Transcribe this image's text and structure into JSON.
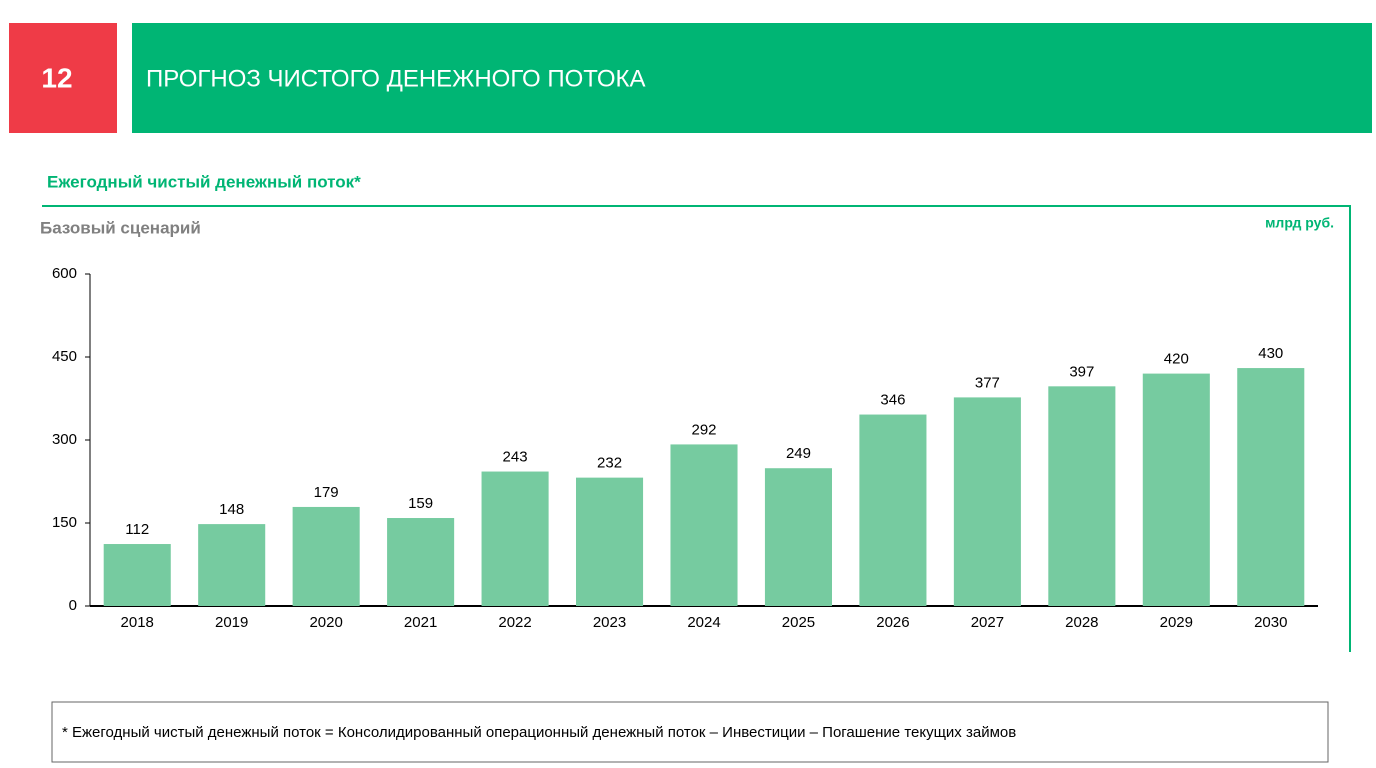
{
  "slide_number": "12",
  "header": {
    "title": "ПРОГНОЗ ЧИСТОГО ДЕНЕЖНОГО ПОТОКА"
  },
  "chart_data": {
    "type": "bar",
    "title": "Ежегодный чистый денежный поток*",
    "subtitle": "Базовый сценарий",
    "unit_label": "млрд руб.",
    "categories": [
      "2018",
      "2019",
      "2020",
      "2021",
      "2022",
      "2023",
      "2024",
      "2025",
      "2026",
      "2027",
      "2028",
      "2029",
      "2030"
    ],
    "values": [
      112,
      148,
      179,
      159,
      243,
      232,
      292,
      249,
      346,
      377,
      397,
      420,
      430
    ],
    "color": "#76cba0",
    "ylim": [
      0,
      600
    ],
    "yticks": [
      0,
      150,
      300,
      450,
      600
    ],
    "grid": false
  },
  "footnote": "* Ежегодный чистый денежный поток = Консолидированный операционный денежный поток – Инвестиции – Погашение текущих займов"
}
